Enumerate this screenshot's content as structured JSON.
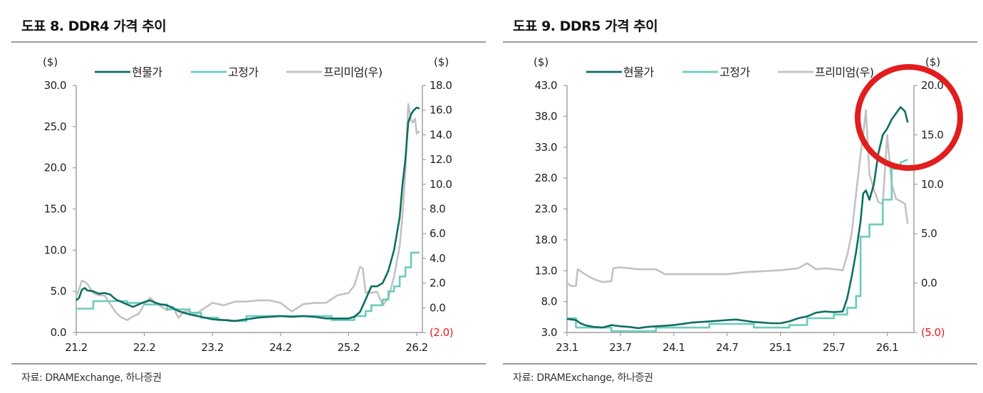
{
  "chart_data": [
    {
      "type": "line",
      "title": "도표 8. DDR4 가격 추이",
      "source": "자료: DRAMExchange, 하나증권",
      "left_unit": "($)",
      "right_unit": "($)",
      "ylim": [
        0,
        30
      ],
      "y2lim": [
        -2,
        18
      ],
      "yticks": [
        "30.0",
        "25.0",
        "20.0",
        "15.0",
        "10.0",
        "5.0",
        "0.0"
      ],
      "ytick_values": [
        30,
        25,
        20,
        15,
        10,
        5,
        0
      ],
      "y2ticks": [
        "18.0",
        "16.0",
        "14.0",
        "12.0",
        "10.0",
        "8.0",
        "6.0",
        "4.0",
        "2.0",
        "0.0",
        "(2.0)"
      ],
      "y2tick_values": [
        18,
        16,
        14,
        12,
        10,
        8,
        6,
        4,
        2,
        0,
        -2
      ],
      "xticks": [
        "21.2",
        "22.2",
        "23.2",
        "24.2",
        "25.2",
        "26.2"
      ],
      "xtick_values": [
        0,
        12,
        24,
        36,
        48,
        60
      ],
      "xlim": [
        0,
        61
      ],
      "legend_position": "top",
      "series": [
        {
          "name": "현물가",
          "axis": "left",
          "color": "#0e6e62",
          "x": [
            0,
            0.5,
            1,
            1.5,
            2,
            3,
            4,
            5,
            6,
            7,
            8,
            9,
            10,
            11,
            12,
            13,
            14,
            15,
            16,
            17,
            18,
            20,
            22,
            24,
            26,
            28,
            30,
            32,
            34,
            36,
            38,
            40,
            42,
            44,
            46,
            48,
            49,
            50,
            51,
            52,
            52.5,
            53,
            54,
            55,
            56,
            57,
            57.5,
            58,
            58.5,
            59,
            59.5,
            60,
            60.5
          ],
          "values": [
            3.9,
            4.2,
            5.2,
            5.4,
            5.1,
            5.0,
            4.7,
            4.8,
            4.6,
            4.0,
            3.7,
            3.4,
            3.1,
            3.4,
            3.7,
            3.9,
            3.6,
            3.4,
            3.3,
            3.0,
            2.6,
            2.2,
            1.9,
            1.6,
            1.5,
            1.4,
            1.6,
            1.8,
            1.9,
            2.0,
            1.9,
            2.0,
            1.9,
            1.7,
            1.7,
            1.7,
            1.9,
            2.5,
            4.0,
            5.6,
            5.6,
            5.6,
            6.0,
            7.5,
            10.0,
            14.0,
            18.0,
            21.0,
            25.5,
            26.5,
            27.0,
            27.3,
            27.2
          ]
        },
        {
          "name": "고정가",
          "axis": "left",
          "color": "#6dcbbd",
          "x": [
            0,
            3,
            3,
            9,
            9,
            12,
            12,
            16,
            16,
            20,
            20,
            22,
            22,
            25,
            25,
            27,
            27,
            30,
            30,
            45,
            45,
            49,
            49,
            51,
            51,
            52,
            52,
            54,
            54,
            55,
            55,
            56,
            56,
            57,
            57,
            58,
            58,
            59,
            59,
            60.5
          ],
          "values": [
            2.9,
            2.9,
            3.8,
            3.8,
            3.6,
            3.6,
            3.4,
            3.4,
            2.8,
            2.8,
            2.4,
            2.4,
            1.8,
            1.8,
            1.5,
            1.5,
            1.4,
            1.4,
            2.0,
            2.0,
            1.5,
            1.5,
            2.0,
            2.0,
            2.6,
            2.6,
            3.3,
            3.3,
            4.0,
            4.0,
            5.0,
            5.0,
            5.6,
            5.6,
            6.8,
            6.8,
            7.9,
            7.9,
            9.7,
            9.7
          ]
        },
        {
          "name": "프리미엄(우)",
          "axis": "right",
          "color": "#c2c2c2",
          "x": [
            0,
            0.5,
            1,
            1.5,
            2,
            3,
            4,
            5,
            6,
            7,
            8,
            9,
            10,
            11,
            12,
            13,
            14,
            15,
            16,
            17,
            18,
            19,
            20,
            21,
            22,
            24,
            26,
            28,
            30,
            32,
            34,
            36,
            38,
            40,
            42,
            44,
            46,
            48,
            49,
            50,
            50.5,
            51,
            51.5,
            52,
            53,
            54,
            55,
            56,
            57,
            57.5,
            58,
            58.5,
            59,
            59.3,
            59.7,
            60,
            60.5
          ],
          "values": [
            0.9,
            1.5,
            2.2,
            2.1,
            1.9,
            1.2,
            1.0,
            1.0,
            0.3,
            -0.4,
            -0.8,
            -1.0,
            -0.7,
            -0.5,
            0.3,
            0.8,
            0.4,
            0.1,
            -0.2,
            0.1,
            -0.8,
            -0.3,
            -0.3,
            -0.6,
            -0.2,
            0.4,
            0.2,
            0.5,
            0.5,
            0.6,
            0.6,
            0.4,
            -0.3,
            0.3,
            0.4,
            0.4,
            1.0,
            1.2,
            1.8,
            3.3,
            3.2,
            1.2,
            1.3,
            1.2,
            1.3,
            0.2,
            0.8,
            2.5,
            5.0,
            7.5,
            11.0,
            16.5,
            15.2,
            15.0,
            15.3,
            14.1,
            14.3
          ]
        }
      ]
    },
    {
      "type": "line",
      "title": "도표 9. DDR5 가격 추이",
      "source": "자료: DRAMExchange, 하나증권",
      "left_unit": "($)",
      "right_unit": "($)",
      "ylim": [
        3,
        43
      ],
      "y2lim": [
        -5,
        20
      ],
      "yticks": [
        "43.0",
        "38.0",
        "33.0",
        "28.0",
        "23.0",
        "18.0",
        "13.0",
        "8.0",
        "3.0"
      ],
      "ytick_values": [
        43,
        38,
        33,
        28,
        23,
        18,
        13,
        8,
        3
      ],
      "y2ticks": [
        "20.0",
        "15.0",
        "10.0",
        "5.0",
        "0.0",
        "(5.0)"
      ],
      "y2tick_values": [
        20,
        15,
        10,
        5,
        0,
        -5
      ],
      "xticks": [
        "23.1",
        "23.7",
        "24.1",
        "24.7",
        "25.1",
        "25.7",
        "26.1"
      ],
      "xtick_values": [
        0,
        6,
        12,
        18,
        24,
        30,
        36
      ],
      "xlim": [
        0,
        39
      ],
      "legend_position": "top",
      "series": [
        {
          "name": "현물가",
          "axis": "left",
          "color": "#0e6e62",
          "x": [
            0,
            1,
            1.5,
            2,
            3,
            4,
            5,
            5.5,
            6,
            7,
            8,
            9,
            10,
            11,
            12,
            13,
            14,
            15,
            16,
            17,
            18,
            19,
            20,
            21,
            22,
            23,
            24,
            25,
            26,
            27,
            28,
            29,
            30,
            31,
            31.5,
            32,
            32.5,
            33,
            33.3,
            33.6,
            34,
            34.5,
            35,
            35.5,
            36,
            36.5,
            37,
            37.5,
            38,
            38.3
          ],
          "values": [
            5.2,
            5.0,
            4.5,
            4.2,
            3.9,
            3.8,
            4.2,
            4.1,
            4.0,
            3.9,
            3.7,
            3.9,
            4.0,
            4.1,
            4.2,
            4.4,
            4.6,
            4.7,
            4.8,
            4.9,
            5.0,
            5.1,
            4.9,
            4.7,
            4.6,
            4.5,
            4.5,
            4.8,
            5.3,
            5.6,
            6.2,
            6.4,
            6.3,
            6.4,
            8.5,
            12.0,
            16.0,
            21.0,
            25.5,
            26.0,
            24.5,
            27.0,
            32.0,
            35.0,
            36.0,
            37.5,
            38.5,
            39.5,
            38.8,
            37.0
          ]
        },
        {
          "name": "고정가",
          "axis": "left",
          "color": "#6dcbbd",
          "x": [
            0,
            1,
            1,
            5,
            5,
            10,
            10,
            16,
            16,
            21,
            21,
            25,
            25,
            27,
            27,
            30,
            30,
            31.5,
            31.5,
            32.5,
            32.5,
            33,
            33,
            34,
            34,
            35.5,
            35.5,
            36.5,
            36.5,
            37.5,
            37.5,
            38.3
          ],
          "values": [
            5.3,
            5.3,
            3.8,
            3.8,
            3.2,
            3.2,
            3.8,
            3.8,
            4.4,
            4.4,
            3.8,
            3.8,
            4.2,
            4.2,
            5.3,
            5.3,
            5.9,
            5.9,
            7.0,
            7.0,
            8.9,
            8.9,
            18.5,
            18.5,
            20.5,
            20.5,
            24.5,
            24.5,
            29.5,
            29.5,
            30.5,
            31.0
          ]
        },
        {
          "name": "프리미엄(우)",
          "axis": "right",
          "color": "#c2c2c2",
          "x": [
            0,
            0.5,
            1,
            1.2,
            2,
            3,
            4,
            5,
            5.2,
            6,
            7,
            8,
            9,
            10,
            11,
            12,
            14,
            16,
            18,
            20,
            22,
            24,
            26,
            27,
            28,
            29,
            30,
            31,
            31.5,
            32,
            32.5,
            33,
            33.3,
            33.6,
            34,
            34.5,
            35,
            35.5,
            36,
            36.5,
            37,
            37.5,
            38,
            38.3
          ],
          "values": [
            0,
            -0.3,
            -0.3,
            1.4,
            0.9,
            0.4,
            0.1,
            0.2,
            1.5,
            1.6,
            1.5,
            1.4,
            1.4,
            1.4,
            0.9,
            0.9,
            0.9,
            0.9,
            0.9,
            1.1,
            1.2,
            1.3,
            1.5,
            2.0,
            1.4,
            1.5,
            1.4,
            1.3,
            2.8,
            5.0,
            9.0,
            13.0,
            15.0,
            17.5,
            11.0,
            9.5,
            8.2,
            8.0,
            15.0,
            10.0,
            8.5,
            8.3,
            8.0,
            6.0
          ]
        }
      ]
    }
  ]
}
